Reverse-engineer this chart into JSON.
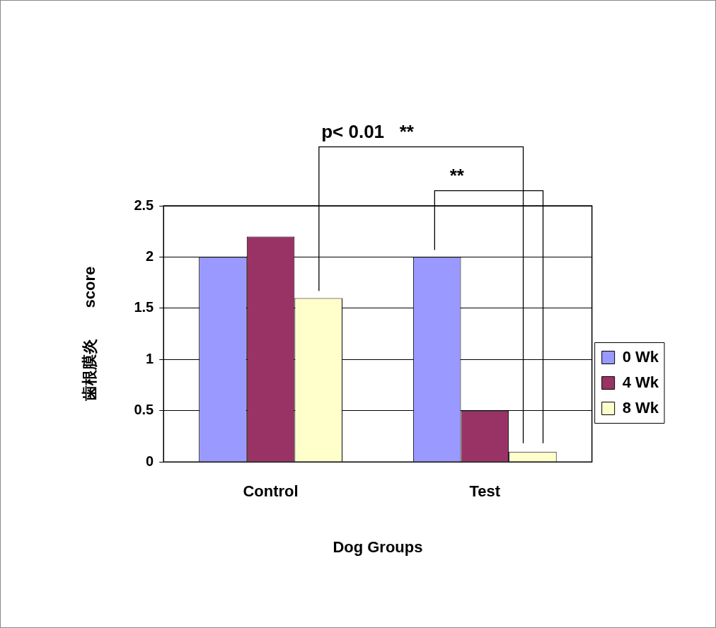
{
  "chart_data": {
    "type": "bar",
    "xlabel": "Dog Groups",
    "ylabel": "歯根膜炎　　score",
    "categories": [
      "Control",
      "Test"
    ],
    "series": [
      {
        "name": "0 Wk",
        "color": "#9999ff",
        "values": [
          2,
          2
        ]
      },
      {
        "name": "4 Wk",
        "color": "#993366",
        "values": [
          2.2,
          0.5
        ]
      },
      {
        "name": "8 Wk",
        "color": "#ffffcc",
        "values": [
          1.6,
          0.1
        ]
      }
    ],
    "ylim": [
      0,
      2.5
    ],
    "yticks": [
      0,
      0.5,
      1,
      1.5,
      2,
      2.5
    ],
    "grid": "y",
    "legend": "right",
    "annotations": [
      "p< 0.01   **",
      "**"
    ]
  }
}
